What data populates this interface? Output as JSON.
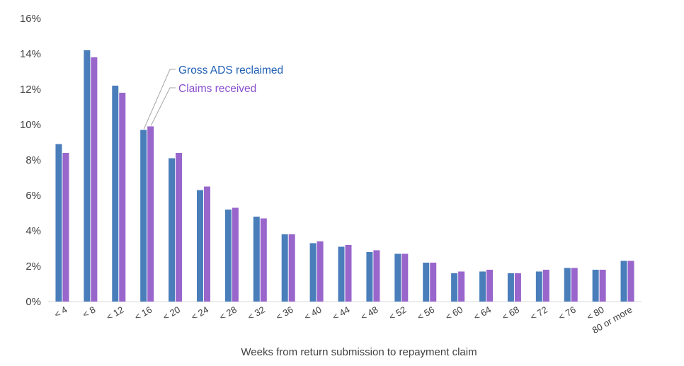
{
  "chart_data": {
    "type": "bar",
    "xlabel": "Weeks from return submission to repayment claim",
    "ylabel": "",
    "ylim": [
      0,
      16
    ],
    "y_ticks": [
      "0%",
      "2%",
      "4%",
      "6%",
      "8%",
      "10%",
      "12%",
      "14%",
      "16%"
    ],
    "grid": false,
    "legend": "annotation near the < 16 bar",
    "categories": [
      "< 4",
      "< 8",
      "< 12",
      "< 16",
      "< 20",
      "< 24",
      "< 28",
      "< 32",
      "< 36",
      "< 40",
      "< 44",
      "< 48",
      "< 52",
      "< 56",
      "< 60",
      "< 64",
      "< 68",
      "< 72",
      "< 76",
      "< 80",
      "80 or more"
    ],
    "series": [
      {
        "name": "Gross ADS reclaimed",
        "color": "#4A7EBB",
        "label_color": "#1F5FB3",
        "values": [
          8.9,
          14.2,
          12.2,
          9.7,
          8.1,
          6.3,
          5.2,
          4.8,
          3.8,
          3.3,
          3.1,
          2.8,
          2.7,
          2.2,
          1.6,
          1.7,
          1.6,
          1.7,
          1.9,
          1.8,
          2.3
        ]
      },
      {
        "name": "Claims received",
        "color": "#9966CC",
        "label_color": "#8A4FCC",
        "values": [
          8.4,
          13.8,
          11.8,
          9.9,
          8.4,
          6.5,
          5.3,
          4.7,
          3.8,
          3.4,
          3.2,
          2.9,
          2.7,
          2.2,
          1.7,
          1.8,
          1.6,
          1.8,
          1.9,
          1.8,
          2.3
        ]
      }
    ]
  }
}
